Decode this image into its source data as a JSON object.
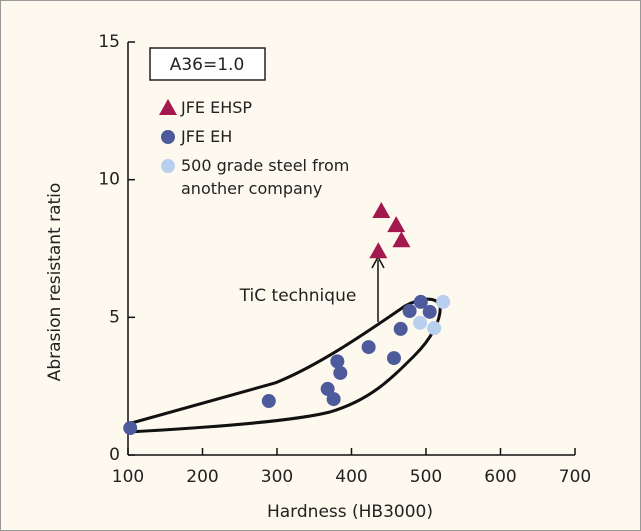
{
  "chart_data": {
    "type": "scatter",
    "xlabel": "Hardness (HB3000)",
    "ylabel": "Abrasion resistant ratio",
    "xlim": [
      100,
      700
    ],
    "xticks": [
      100,
      200,
      300,
      400,
      500,
      600,
      700
    ],
    "ylim": [
      0,
      15
    ],
    "yticks": [
      0,
      5,
      10,
      15
    ],
    "annotations": [
      "A36=1.0",
      "TiC technique"
    ],
    "series": [
      {
        "name": "JFE EHSP",
        "color": "#a3194d",
        "marker": "triangle",
        "x": [
          440,
          460,
          467,
          436
        ],
        "y": [
          8.86,
          8.35,
          7.8,
          7.4
        ]
      },
      {
        "name": "JFE EH",
        "color": "#4d5b9c",
        "marker": "circle",
        "x": [
          103,
          289,
          368,
          376,
          381,
          385,
          423,
          457,
          466,
          478,
          493,
          505
        ],
        "y": [
          0.98,
          1.96,
          2.4,
          2.03,
          3.4,
          2.98,
          3.92,
          3.52,
          4.58,
          5.23,
          5.56,
          5.2
        ]
      },
      {
        "name": "500 grade steel from another company",
        "color": "#b9cfee",
        "marker": "circle",
        "x": [
          492,
          511,
          523
        ],
        "y": [
          4.8,
          4.61,
          5.56
        ]
      }
    ]
  }
}
